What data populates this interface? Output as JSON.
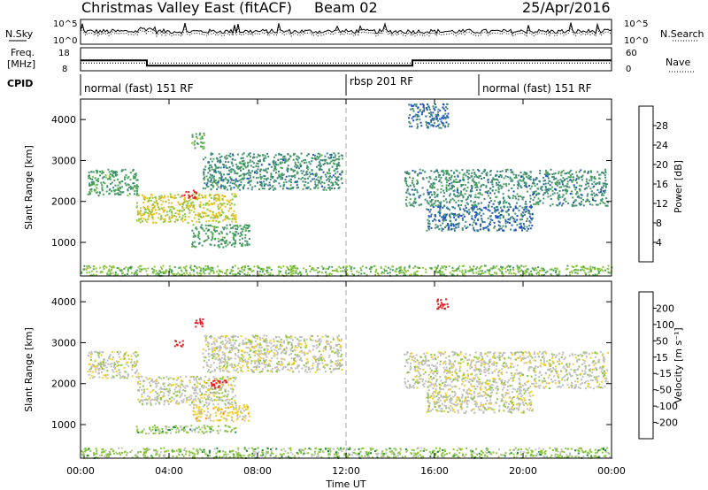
{
  "header": {
    "title": "Christmas Valley East (fitACF)",
    "beam": "Beam 02",
    "date": "25/Apr/2016"
  },
  "noise_panel": {
    "left_label": "N.Sky",
    "left_ticks": [
      "10^5",
      "10^0"
    ],
    "right_label": "N.Search",
    "right_ticks": [
      "10^5",
      "10^0"
    ]
  },
  "freq_panel": {
    "left_label_line1": "Freq.",
    "left_label_line2": "[MHz]",
    "left_ticks": [
      "18",
      "8"
    ],
    "right_label": "Nave",
    "right_ticks": [
      "60",
      "0"
    ],
    "freq_mhz": [
      [
        0,
        12.5
      ],
      [
        3,
        12.5
      ],
      [
        3,
        10.2
      ],
      [
        15,
        10.2
      ],
      [
        15,
        12.5
      ],
      [
        24,
        12.5
      ]
    ],
    "nave": [
      [
        0,
        20
      ],
      [
        24,
        20
      ]
    ]
  },
  "cpid": {
    "label": "CPID",
    "segments": [
      {
        "start_h": 0,
        "end_h": 12,
        "text": "normal (fast) 151 RF"
      },
      {
        "start_h": 12,
        "end_h": 18,
        "text": "rbsp 201 RF"
      },
      {
        "start_h": 18,
        "end_h": 24,
        "text": "normal (fast) 151 RF"
      }
    ]
  },
  "colorbars": {
    "power": {
      "label": "Power [dB]",
      "ticks": [
        "28",
        "24",
        "20",
        "16",
        "12",
        "8",
        "4"
      ],
      "colors": [
        "#0000ff",
        "#2050c8",
        "#3f8a7a",
        "#4aa35a",
        "#8cc63f",
        "#e8c020",
        "#f7941d",
        "#f26522",
        "#ed1c24"
      ]
    },
    "velocity": {
      "label": "Velocity [m s⁻¹]",
      "ticks": [
        "200",
        "100",
        "50",
        "15",
        "-15",
        "-50",
        "-100",
        "-200"
      ],
      "colors": [
        "#0000b4",
        "#1e50c8",
        "#1e8c3c",
        "#8cc63f",
        "#c0c0c0",
        "#f5d020",
        "#f7941d",
        "#f26522",
        "#ed1c24"
      ]
    }
  },
  "chart_data": [
    {
      "type": "heatmap",
      "name": "power",
      "ylabel": "Slant Range [km]",
      "x_range_h": [
        0,
        24
      ],
      "ylim": [
        180,
        4500
      ],
      "yticks": [
        "4000",
        "3000",
        "2000",
        "1000"
      ],
      "clim": [
        0,
        30
      ],
      "regions": [
        {
          "t0": 0.3,
          "t1": 2.6,
          "r0": 2150,
          "r1": 2800,
          "v": 11
        },
        {
          "t0": 2.5,
          "t1": 7.0,
          "r0": 1500,
          "r1": 2200,
          "v": 17
        },
        {
          "t0": 4.5,
          "t1": 5.2,
          "r0": 2100,
          "r1": 2300,
          "v": 28
        },
        {
          "t0": 5.5,
          "t1": 11.8,
          "r0": 2300,
          "r1": 3200,
          "v": 9
        },
        {
          "t0": 5.0,
          "t1": 7.6,
          "r0": 900,
          "r1": 1450,
          "v": 11
        },
        {
          "t0": 5.0,
          "t1": 5.6,
          "r0": 3300,
          "r1": 3700,
          "v": 12
        },
        {
          "t0": 14.6,
          "t1": 23.8,
          "r0": 1900,
          "r1": 2800,
          "v": 9
        },
        {
          "t0": 15.6,
          "t1": 20.4,
          "r0": 1300,
          "r1": 1900,
          "v": 7
        },
        {
          "t0": 14.8,
          "t1": 16.6,
          "r0": 3800,
          "r1": 4400,
          "v": 7
        },
        {
          "t0": 0.0,
          "t1": 24.0,
          "r0": 200,
          "r1": 450,
          "v": 14
        }
      ]
    },
    {
      "type": "heatmap",
      "name": "velocity",
      "ylabel": "Slant Range [km]",
      "x_range_h": [
        0,
        24
      ],
      "ylim": [
        180,
        4500
      ],
      "yticks": [
        "4000",
        "3000",
        "2000",
        "1000"
      ],
      "clim": [
        -200,
        200
      ],
      "regions": [
        {
          "t0": 0.3,
          "t1": 2.6,
          "r0": 2150,
          "r1": 2800,
          "v": 0
        },
        {
          "t0": 2.5,
          "t1": 7.0,
          "r0": 1500,
          "r1": 2200,
          "v": 0
        },
        {
          "t0": 5.5,
          "t1": 11.8,
          "r0": 2300,
          "r1": 3200,
          "v": 0
        },
        {
          "t0": 5.0,
          "t1": 7.6,
          "r0": 1100,
          "r1": 1500,
          "v": 40
        },
        {
          "t0": 5.1,
          "t1": 5.6,
          "r0": 3400,
          "r1": 3600,
          "v": 200
        },
        {
          "t0": 4.2,
          "t1": 4.6,
          "r0": 2900,
          "r1": 3100,
          "v": 200
        },
        {
          "t0": 5.8,
          "t1": 6.6,
          "r0": 1900,
          "r1": 2100,
          "v": 200
        },
        {
          "t0": 14.6,
          "t1": 23.8,
          "r0": 1900,
          "r1": 2800,
          "v": 0
        },
        {
          "t0": 15.6,
          "t1": 20.4,
          "r0": 1300,
          "r1": 1900,
          "v": 0
        },
        {
          "t0": 16.0,
          "t1": 16.6,
          "r0": 3800,
          "r1": 4100,
          "v": 200
        },
        {
          "t0": 2.5,
          "t1": 7.0,
          "r0": 800,
          "r1": 1000,
          "v": -40
        },
        {
          "t0": 0.0,
          "t1": 24.0,
          "r0": 200,
          "r1": 450,
          "v": -40
        }
      ]
    }
  ],
  "xaxis": {
    "label": "Time UT",
    "ticks": [
      "00:00",
      "04:00",
      "08:00",
      "12:00",
      "16:00",
      "20:00",
      "00:00"
    ]
  }
}
